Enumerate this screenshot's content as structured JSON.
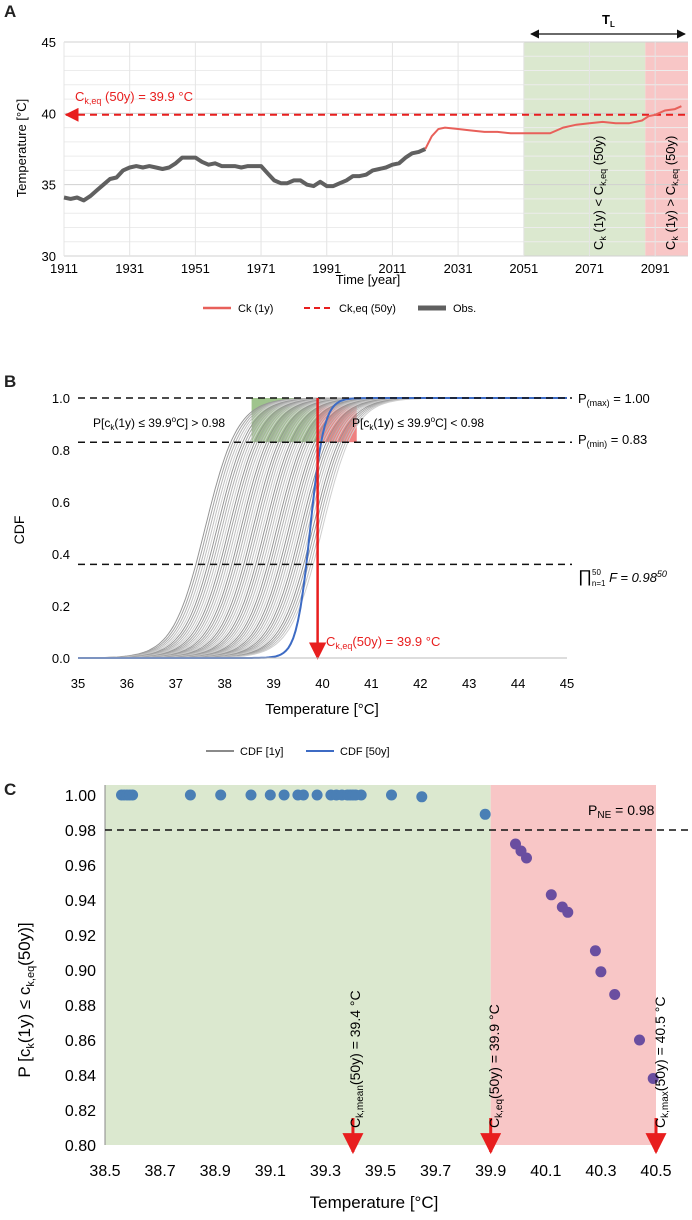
{
  "colors": {
    "ck1y": "#e8605a",
    "ckeq": "#e81e1e",
    "obs": "#606060",
    "cdf1y": "#8a8a8a",
    "cdf50y": "#3d6bc4",
    "green_zone": "#dbe8cf",
    "red_zone": "#f8c6c6",
    "dot_blue": "#4a7fb5",
    "dot_purple": "#6a4ea0"
  },
  "panels": [
    "A",
    "B",
    "C"
  ],
  "chart_data": [
    {
      "panel": "A",
      "type": "line",
      "xlabel": "Time [year]",
      "ylabel": "Temperature [°C]",
      "xlim": [
        1911,
        2101
      ],
      "ylim": [
        30,
        45
      ],
      "xticks": [
        "1911",
        "1931",
        "1951",
        "1971",
        "1991",
        "2011",
        "2031",
        "2051",
        "2071",
        "2091"
      ],
      "yticks": [
        "30",
        "35",
        "40",
        "45"
      ],
      "grid": true,
      "legend": [
        "Ck (1y)",
        "Ck,eq (50y)",
        "Obs."
      ],
      "annotation_ckeq": "C",
      "annotation_ckeq_sub": "k,eq",
      "annotation_ckeq_rest": " (50y) = 39.9 °C",
      "tl_label": "T",
      "tl_sub": "L",
      "green_zone": [
        2051,
        2088
      ],
      "red_zone": [
        2088,
        2101
      ],
      "zone_green_label": "C_k (1y) < C_k,eq (50y)",
      "zone_red_label": "C_k (1y) > C_k,eq (50y)",
      "ckeq_value": 39.9,
      "series": [
        {
          "name": "Obs.",
          "x": [
            1911,
            1913,
            1915,
            1917,
            1919,
            1921,
            1923,
            1925,
            1927,
            1929,
            1931,
            1933,
            1935,
            1937,
            1939,
            1941,
            1943,
            1945,
            1947,
            1949,
            1951,
            1953,
            1955,
            1957,
            1959,
            1961,
            1963,
            1965,
            1967,
            1969,
            1971,
            1973,
            1975,
            1977,
            1979,
            1981,
            1983,
            1985,
            1987,
            1989,
            1991,
            1993,
            1995,
            1997,
            1999,
            2001,
            2003,
            2005,
            2007,
            2009,
            2011,
            2013,
            2015,
            2017,
            2019,
            2021
          ],
          "y": [
            34.1,
            34.0,
            34.1,
            33.9,
            34.2,
            34.6,
            35.0,
            35.4,
            35.5,
            36.0,
            36.2,
            36.3,
            36.2,
            36.3,
            36.2,
            36.1,
            36.2,
            36.5,
            36.9,
            36.9,
            36.9,
            36.6,
            36.4,
            36.5,
            36.3,
            36.3,
            36.3,
            36.2,
            36.3,
            36.3,
            36.3,
            35.8,
            35.3,
            35.1,
            35.1,
            35.3,
            35.3,
            35.0,
            34.9,
            35.2,
            34.9,
            34.9,
            35.1,
            35.3,
            35.6,
            35.6,
            35.7,
            36.0,
            36.1,
            36.2,
            36.4,
            36.5,
            36.9,
            37.2,
            37.3,
            37.5
          ]
        },
        {
          "name": "Ck (1y)",
          "x": [
            2021,
            2023,
            2025,
            2027,
            2031,
            2035,
            2039,
            2043,
            2047,
            2051,
            2055,
            2059,
            2063,
            2067,
            2071,
            2075,
            2079,
            2083,
            2087,
            2089,
            2091,
            2094,
            2097,
            2099
          ],
          "y": [
            37.5,
            38.4,
            38.9,
            39.0,
            38.9,
            38.8,
            38.7,
            38.7,
            38.6,
            38.6,
            38.6,
            38.6,
            39.0,
            39.2,
            39.3,
            39.4,
            39.3,
            39.3,
            39.5,
            39.8,
            39.9,
            40.2,
            40.3,
            40.5
          ]
        },
        {
          "name": "Ck,eq (50y)",
          "x": [
            1911,
            2101
          ],
          "y": [
            39.9,
            39.9
          ]
        }
      ]
    },
    {
      "panel": "B",
      "type": "line",
      "xlabel": "Temperature [°C]",
      "ylabel": "CDF",
      "xlim": [
        35,
        45
      ],
      "ylim": [
        0,
        1
      ],
      "xticks": [
        "35",
        "36",
        "37",
        "38",
        "39",
        "40",
        "41",
        "42",
        "43",
        "44",
        "45"
      ],
      "yticks": [
        "0.0",
        "0.2",
        "0.4",
        "0.6",
        "0.8",
        "1.0"
      ],
      "legend": [
        "CDF [1y]",
        "CDF [50y]"
      ],
      "cdf1y_medians_from": 37.6,
      "cdf1y_medians_to": 40.0,
      "cdf1y_curve_count": 50,
      "cdf50y_median": 39.75,
      "p_max_label": "P",
      "p_max_sub": "(max)",
      "p_max_rest": " = 1.00",
      "p_min_label": "P",
      "p_min_sub": "(min)",
      "p_min_rest": " = 0.83",
      "prod_label": "∏",
      "prod_sub": "n=1",
      "prod_sup": "50",
      "prod_rest": " F = 0.98",
      "prod_exp": "50",
      "prob_left": "P[c",
      "prob_left_sub": "k",
      "prob_left_rest": "(1y) ≤ 39.9",
      "prob_left_sup": "o",
      "prob_left_end": "C]  > 0.98",
      "prob_right_end": "C]  < 0.98",
      "ckeq_label": "C",
      "ckeq_sub": "k,eq",
      "ckeq_rest": "(50y) = 39.9 °C",
      "p_max": 1.0,
      "p_min": 0.83,
      "product_level": 0.36,
      "ckeq_value": 39.9
    },
    {
      "panel": "C",
      "type": "scatter",
      "xlabel": "Temperature [°C]",
      "ylabel": "P [c_k(1y) ≤ c_k,eq(50y)]",
      "xlim": [
        38.5,
        40.55
      ],
      "ylim": [
        0.8,
        1.0
      ],
      "xticks": [
        "38.5",
        "38.7",
        "38.9",
        "39.1",
        "39.3",
        "39.5",
        "39.7",
        "39.9",
        "40.1",
        "40.3",
        "40.5"
      ],
      "yticks": [
        "0.80",
        "0.82",
        "0.84",
        "0.86",
        "0.88",
        "0.90",
        "0.92",
        "0.94",
        "0.96",
        "0.98",
        "1.00"
      ],
      "green_zone": [
        38.5,
        39.9
      ],
      "red_zone": [
        39.9,
        40.5
      ],
      "pne_label": "P",
      "pne_sub": "NE",
      "pne_rest": " = 0.98",
      "pne_value": 0.98,
      "markers": [
        {
          "x": 39.4,
          "label": "C_k,mean(50y) = 39.4 °C"
        },
        {
          "x": 39.9,
          "label": "C_k,eq(50y) = 39.9 °C"
        },
        {
          "x": 40.5,
          "label": "C_k,max(50y) = 40.5 °C"
        }
      ],
      "series": [
        {
          "name": "below",
          "color": "blue",
          "x": [
            38.56,
            38.57,
            38.58,
            38.59,
            38.6,
            38.81,
            38.92,
            39.03,
            39.1,
            39.15,
            39.2,
            39.22,
            39.27,
            39.32,
            39.34,
            39.36,
            39.38,
            39.39,
            39.4,
            39.41,
            39.43,
            39.54,
            39.65,
            39.88
          ],
          "y": [
            1.0,
            1.0,
            1.0,
            1.0,
            1.0,
            1.0,
            1.0,
            1.0,
            1.0,
            1.0,
            1.0,
            1.0,
            1.0,
            1.0,
            1.0,
            1.0,
            1.0,
            1.0,
            1.0,
            1.0,
            1.0,
            1.0,
            0.999,
            0.989
          ]
        },
        {
          "name": "above",
          "color": "purple",
          "x": [
            39.99,
            40.01,
            40.03,
            40.12,
            40.16,
            40.18,
            40.28,
            40.3,
            40.35,
            40.44,
            40.49
          ],
          "y": [
            0.972,
            0.968,
            0.964,
            0.943,
            0.936,
            0.933,
            0.911,
            0.899,
            0.886,
            0.86,
            0.838
          ]
        }
      ]
    }
  ]
}
